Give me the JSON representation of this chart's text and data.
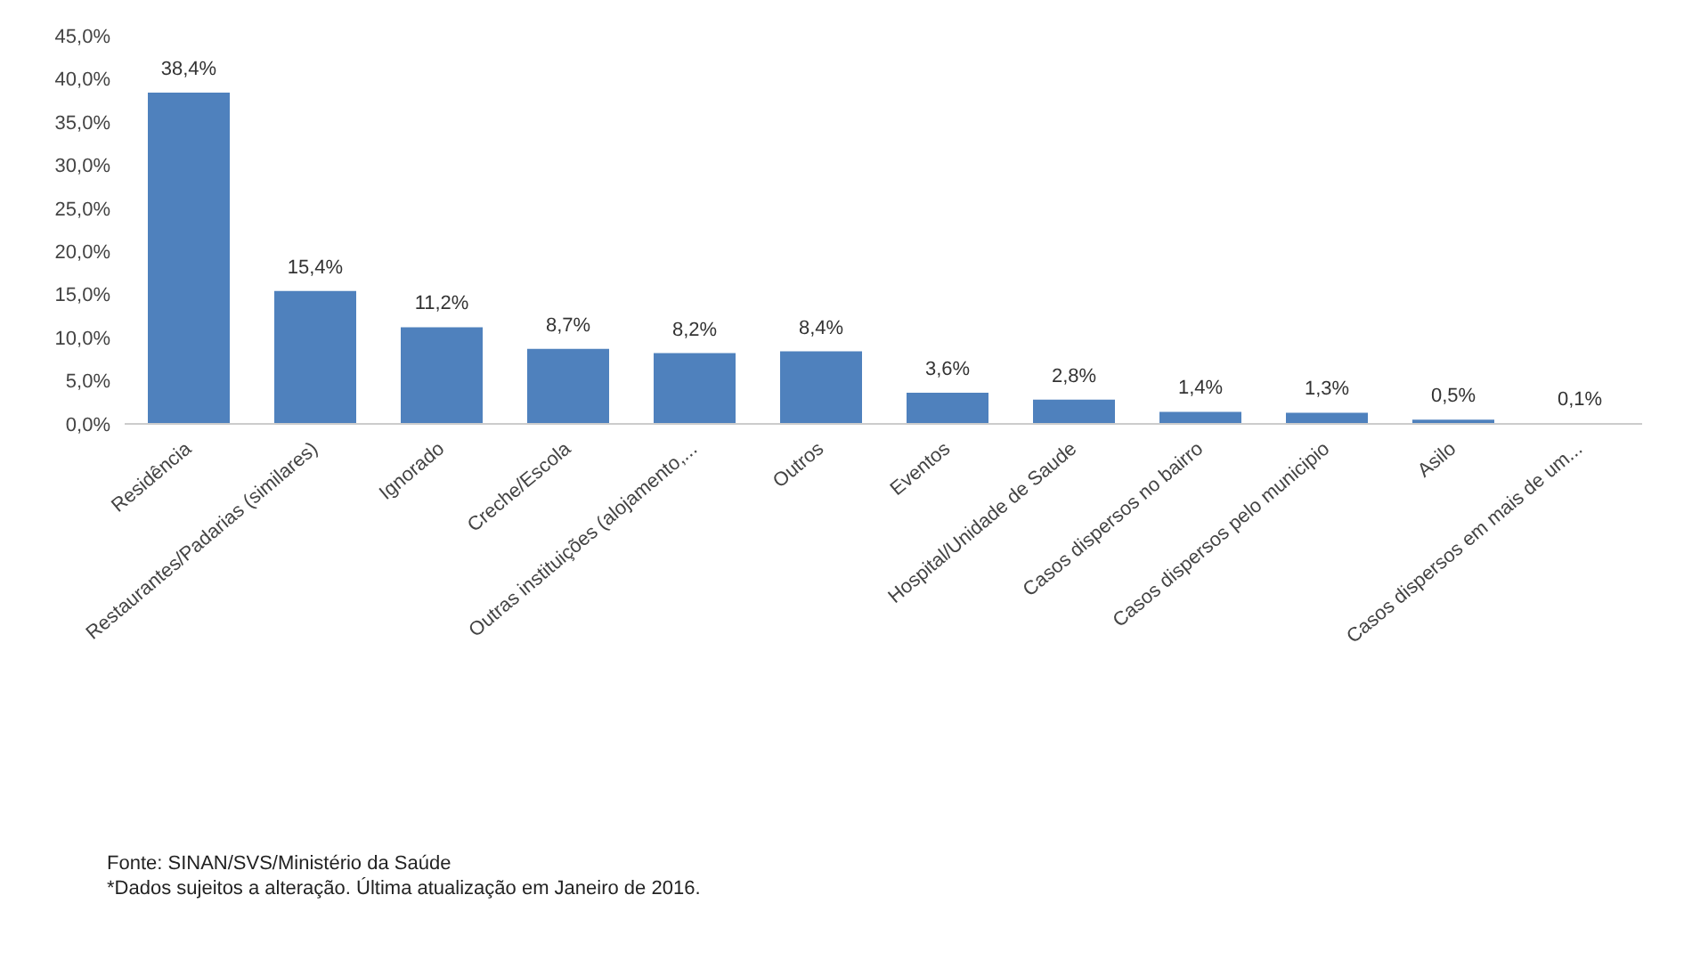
{
  "chart_data": {
    "type": "bar",
    "categories": [
      "Residência",
      "Restaurantes/Padarias (similares)",
      "Ignorado",
      "Creche/Escola",
      "Outras instituições (alojamento,...",
      "Outros",
      "Eventos",
      "Hospital/Unidade de Saude",
      "Casos dispersos no bairro",
      "Casos dispersos pelo municipio",
      "Asilo",
      "Casos dispersos em mais de um..."
    ],
    "values": [
      38.4,
      15.4,
      11.2,
      8.7,
      8.2,
      8.4,
      3.6,
      2.8,
      1.4,
      1.3,
      0.5,
      0.1
    ],
    "value_labels": [
      "38,4%",
      "15,4%",
      "11,2%",
      "8,7%",
      "8,2%",
      "8,4%",
      "3,6%",
      "2,8%",
      "1,4%",
      "1,3%",
      "0,5%",
      "0,1%"
    ],
    "color": "#4f81bd",
    "ylim": [
      0,
      45
    ],
    "yticks": [
      {
        "value": 0,
        "label": "0,0%"
      },
      {
        "value": 5,
        "label": "5,0%"
      },
      {
        "value": 10,
        "label": "10,0%"
      },
      {
        "value": 15,
        "label": "15,0%"
      },
      {
        "value": 20,
        "label": "20,0%"
      },
      {
        "value": 25,
        "label": "25,0%"
      },
      {
        "value": 30,
        "label": "30,0%"
      },
      {
        "value": 35,
        "label": "35,0%"
      },
      {
        "value": 40,
        "label": "40,0%"
      },
      {
        "value": 45,
        "label": "45,0%"
      }
    ],
    "grid": false,
    "legend": false,
    "annotations": [
      "Fonte: SINAN/SVS/Ministério da Saúde",
      "*Dados sujeitos a alteração. Última atualização em Janeiro de 2016."
    ]
  }
}
